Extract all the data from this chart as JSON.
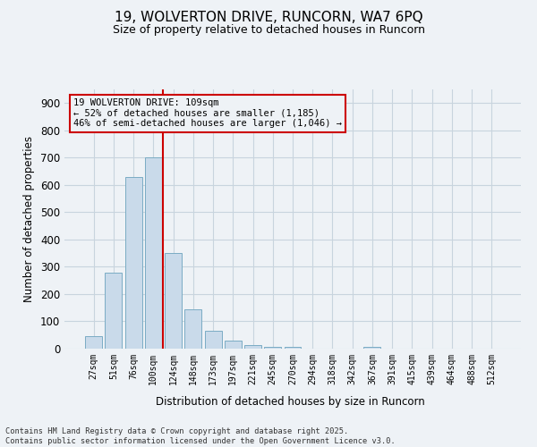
{
  "title1": "19, WOLVERTON DRIVE, RUNCORN, WA7 6PQ",
  "title2": "Size of property relative to detached houses in Runcorn",
  "xlabel": "Distribution of detached houses by size in Runcorn",
  "ylabel": "Number of detached properties",
  "categories": [
    "27sqm",
    "51sqm",
    "76sqm",
    "100sqm",
    "124sqm",
    "148sqm",
    "173sqm",
    "197sqm",
    "221sqm",
    "245sqm",
    "270sqm",
    "294sqm",
    "318sqm",
    "342sqm",
    "367sqm",
    "391sqm",
    "415sqm",
    "439sqm",
    "464sqm",
    "488sqm",
    "512sqm"
  ],
  "values": [
    45,
    280,
    630,
    700,
    350,
    145,
    65,
    30,
    12,
    8,
    7,
    0,
    0,
    0,
    5,
    0,
    0,
    0,
    0,
    0,
    0
  ],
  "bar_color": "#c9daea",
  "bar_edge_color": "#7bacc4",
  "grid_color": "#c8d4de",
  "vline_color": "#cc0000",
  "vline_x_index": 3.5,
  "annotation_title": "19 WOLVERTON DRIVE: 109sqm",
  "annotation_line1": "← 52% of detached houses are smaller (1,185)",
  "annotation_line2": "46% of semi-detached houses are larger (1,046) →",
  "annotation_box_color": "#cc0000",
  "ylim": [
    0,
    950
  ],
  "yticks": [
    0,
    100,
    200,
    300,
    400,
    500,
    600,
    700,
    800,
    900
  ],
  "footer1": "Contains HM Land Registry data © Crown copyright and database right 2025.",
  "footer2": "Contains public sector information licensed under the Open Government Licence v3.0.",
  "bg_color": "#eef2f6"
}
